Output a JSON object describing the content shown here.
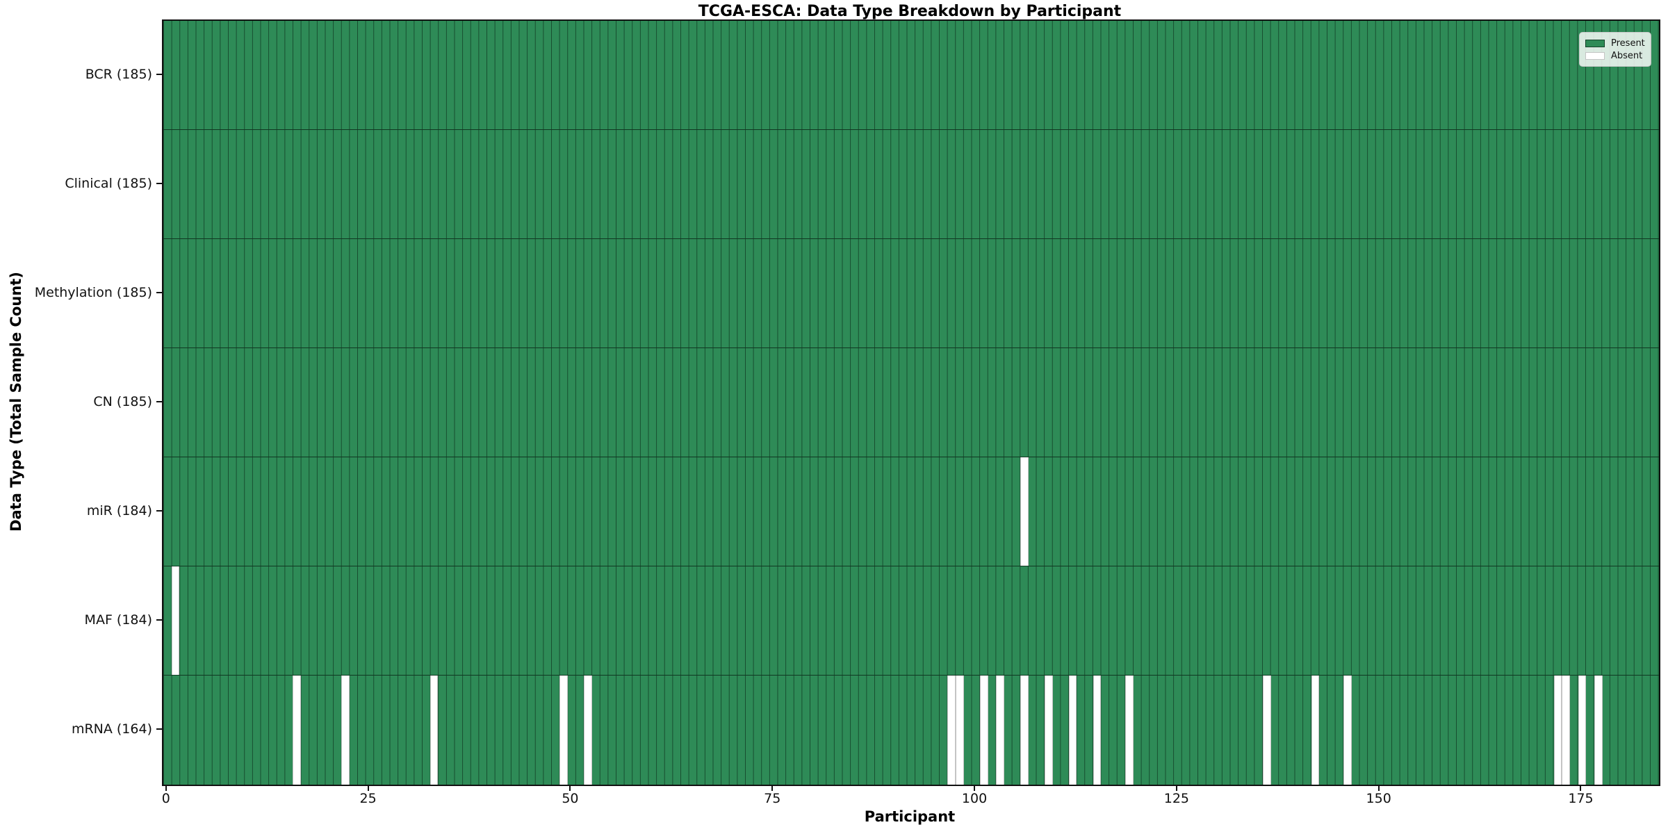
{
  "title": "TCGA-ESCA: Data Type Breakdown by Participant",
  "xlabel": "Participant",
  "ylabel": "Data Type (Total Sample Count)",
  "legend": {
    "present_label": "Present",
    "absent_label": "Absent"
  },
  "colors": {
    "present": "#2E8B57",
    "absent": "#FFFFFF",
    "cell_edge": "rgba(0,15,8,0.5)",
    "spine": "#111111"
  },
  "chart_data": {
    "type": "heatmap",
    "title": "TCGA-ESCA: Data Type Breakdown by Participant",
    "xlabel": "Participant",
    "ylabel": "Data Type (Total Sample Count)",
    "legend_entries": [
      "Present",
      "Absent"
    ],
    "legend_position": "upper right",
    "n_participants": 185,
    "x_range": [
      0,
      185
    ],
    "x_ticks": [
      0,
      25,
      50,
      75,
      100,
      125,
      150,
      175
    ],
    "cell_states": {
      "present": 1,
      "absent": 0
    },
    "rows": [
      {
        "name": "BCR",
        "label": "BCR (185)",
        "total": 185,
        "absent_participants": []
      },
      {
        "name": "Clinical",
        "label": "Clinical (185)",
        "total": 185,
        "absent_participants": []
      },
      {
        "name": "Methylation",
        "label": "Methylation (185)",
        "total": 185,
        "absent_participants": []
      },
      {
        "name": "CN",
        "label": "CN (185)",
        "total": 185,
        "absent_participants": []
      },
      {
        "name": "miR",
        "label": "miR (184)",
        "total": 184,
        "absent_participants": [
          106
        ]
      },
      {
        "name": "MAF",
        "label": "MAF (184)",
        "total": 184,
        "absent_participants": [
          1
        ]
      },
      {
        "name": "mRNA",
        "label": "mRNA (164)",
        "total": 164,
        "absent_participants": [
          16,
          22,
          33,
          49,
          52,
          97,
          98,
          101,
          103,
          106,
          109,
          112,
          115,
          119,
          136,
          142,
          146,
          172,
          173,
          175,
          177
        ]
      }
    ]
  }
}
